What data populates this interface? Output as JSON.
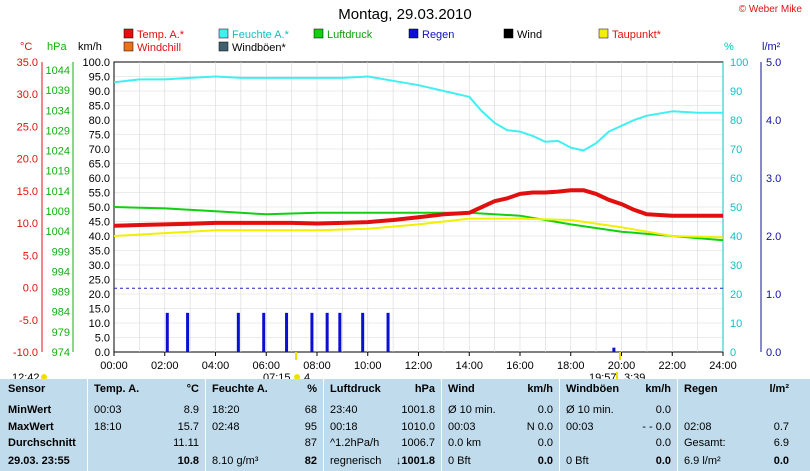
{
  "title": "Montag, 29.03.2010",
  "credit": "© Weber Mike",
  "colors": {
    "temp": "#e01010",
    "feuchte": "#40f0f0",
    "luftdruck": "#10d010",
    "regen": "#0a10d0",
    "wind": "#000000",
    "taupunkt": "#f0f000",
    "windchill": "#f07018",
    "windboeen": "#406070",
    "axis_temp": "#e01010",
    "axis_hpa": "#10b010",
    "axis_pct": "#10c0c0",
    "axis_rain": "#1010a0",
    "dotted": "#2020c0",
    "panel": "#c0dcec"
  },
  "legend": [
    {
      "label": "Temp. A.*",
      "color_key": "temp"
    },
    {
      "label": "Feuchte A.*",
      "color_key": "feuchte"
    },
    {
      "label": "Luftdruck",
      "color_key": "luftdruck"
    },
    {
      "label": "Regen",
      "color_key": "regen"
    },
    {
      "label": "Wind",
      "color_key": "wind"
    },
    {
      "label": "Taupunkt*",
      "color_key": "taupunkt"
    },
    {
      "label": "Windchill",
      "color_key": "windchill"
    },
    {
      "label": "Windböen*",
      "color_key": "windboeen"
    }
  ],
  "axis_headers": {
    "temp": "°C",
    "hpa": "hPa",
    "kmh": "km/h",
    "pct": "%",
    "rain": "l/m²"
  },
  "chart_data": {
    "type": "line",
    "x_range": [
      0,
      24
    ],
    "x_ticks": [
      "00:00",
      "02:00",
      "04:00",
      "06:00",
      "08:00",
      "10:00",
      "12:00",
      "14:00",
      "16:00",
      "18:00",
      "20:00",
      "22:00",
      "24:00"
    ],
    "kmh_range": [
      0,
      100
    ],
    "kmh_ticks": [
      "0.0",
      "5.0",
      "10.0",
      "15.0",
      "20.0",
      "25.0",
      "30.0",
      "35.0",
      "40.0",
      "45.0",
      "50.0",
      "55.0",
      "60.0",
      "65.0",
      "70.0",
      "75.0",
      "80.0",
      "85.0",
      "90.0",
      "95.0",
      "100.0"
    ],
    "temp_ticks": [
      "35.0",
      "30.0",
      "25.0",
      "20.0",
      "15.0",
      "10.0",
      "5.0",
      "0.0",
      "-5.0",
      "-10.0"
    ],
    "hpa_ticks": [
      "1044",
      "1039",
      "1034",
      "1029",
      "1024",
      "1019",
      "1014",
      "1009",
      "1004",
      "999",
      "994",
      "989",
      "984",
      "979",
      "974"
    ],
    "pct_ticks": [
      "100",
      "90",
      "80",
      "70",
      "60",
      "50",
      "40",
      "30",
      "20",
      "10",
      "0"
    ],
    "rain_ticks": [
      "5.0",
      "4.0",
      "3.0",
      "2.0",
      "1.0",
      "0.0"
    ],
    "zero_line_kmh": 22,
    "sun_events": [
      {
        "time": "12:42",
        "side": "start"
      },
      {
        "time": "07:15",
        "extra": "4"
      },
      {
        "time": "19:57",
        "extra": "3:39"
      }
    ],
    "series": [
      {
        "name": "Feuchte A.*",
        "color_key": "feuchte",
        "axis": "kmh",
        "width": 2,
        "x": [
          0,
          1,
          2,
          3,
          4,
          5,
          6,
          7,
          8,
          9,
          10,
          11,
          12,
          13,
          14,
          14.5,
          15,
          15.5,
          16,
          16.5,
          17,
          17.5,
          18,
          18.5,
          19,
          19.5,
          20,
          20.5,
          21,
          22,
          23,
          24
        ],
        "y": [
          93,
          94,
          94,
          94.5,
          95,
          94.5,
          94.5,
          94.5,
          94.5,
          94.5,
          95,
          93.5,
          92,
          90,
          88,
          83,
          79,
          76.5,
          76,
          74.5,
          72.5,
          72.8,
          70.5,
          69.5,
          72,
          76,
          78,
          80,
          81.5,
          83,
          82.5,
          82.5
        ]
      },
      {
        "name": "Luftdruck",
        "color_key": "luftdruck",
        "axis": "kmh",
        "width": 2,
        "x": [
          0,
          2,
          4,
          6,
          8,
          10,
          12,
          14,
          16,
          18,
          20,
          22,
          24
        ],
        "y": [
          50,
          49.5,
          48.5,
          47.5,
          48,
          48,
          48,
          48,
          47,
          44,
          41.5,
          40,
          38.5
        ]
      },
      {
        "name": "Taupunkt*",
        "color_key": "taupunkt",
        "axis": "kmh",
        "width": 2,
        "x": [
          0,
          2,
          4,
          6,
          8,
          10,
          12,
          14,
          16,
          18,
          20,
          22,
          24
        ],
        "y": [
          40,
          41,
          42,
          42,
          42,
          42.5,
          44,
          46,
          46,
          45.5,
          43,
          40,
          39.5
        ]
      },
      {
        "name": "Temp. A.*",
        "color_key": "temp",
        "axis": "kmh",
        "width": 4,
        "x": [
          0,
          1,
          2,
          3,
          4,
          5,
          6,
          7,
          8,
          9,
          10,
          11,
          12,
          13,
          14,
          14.5,
          15,
          15.5,
          16,
          16.5,
          17,
          17.5,
          18,
          18.5,
          19,
          19.5,
          20,
          20.5,
          21,
          22,
          23,
          24
        ],
        "y": [
          43.5,
          43.8,
          44,
          44.2,
          44.5,
          44.5,
          44.5,
          44.5,
          44.3,
          44.5,
          44.8,
          45.5,
          46.5,
          47.5,
          48,
          50,
          52,
          53,
          54.5,
          55,
          55,
          55.3,
          55.8,
          55.8,
          54.5,
          52.5,
          51,
          49,
          47.5,
          47,
          47,
          47
        ]
      },
      {
        "name": "Regen",
        "color_key": "regen",
        "axis": "kmh",
        "type": "bars",
        "x": [
          2.1,
          2.9,
          4.9,
          5.9,
          6.8,
          7.8,
          8.4,
          8.9,
          9.8,
          10.8,
          19.7
        ],
        "y": [
          13.5,
          13.5,
          13.5,
          13.5,
          13.5,
          13.5,
          13.5,
          13.5,
          13.5,
          13.5,
          1.5
        ]
      }
    ]
  },
  "stats": {
    "headers": {
      "sensor": "Sensor",
      "temp": "Temp. A.",
      "temp_unit": "°C",
      "feuchte": "Feuchte A.",
      "feuchte_unit": "%",
      "luft": "Luftdruck",
      "luft_unit": "hPa",
      "wind": "Wind",
      "wind_unit": "km/h",
      "boeen": "Windböen",
      "boeen_unit": "km/h",
      "regen": "Regen",
      "regen_unit": "l/m²"
    },
    "row_labels": [
      "MinWert",
      "MaxWert",
      "Durchschnitt"
    ],
    "date_label": "29.03. 23:55",
    "temp": [
      {
        "t": "00:03",
        "v": "8.9"
      },
      {
        "t": "18:10",
        "v": "15.7"
      },
      {
        "t": "",
        "v": "11.11"
      },
      {
        "t": "",
        "v": "10.8"
      }
    ],
    "feuchte": [
      {
        "t": "18:20",
        "v": "68"
      },
      {
        "t": "02:48",
        "v": "95"
      },
      {
        "t": "",
        "v": "87"
      },
      {
        "t": "8.10 g/m³",
        "v": "82"
      }
    ],
    "luft": [
      {
        "t": "23:40",
        "v": "1001.8"
      },
      {
        "t": "00:18",
        "v": "1010.0"
      },
      {
        "t": "^1.2hPa/h",
        "v": "1006.7"
      },
      {
        "t": "regnerisch",
        "v": "↓1001.8"
      }
    ],
    "wind": [
      {
        "t": "Ø 10 min.",
        "v": "0.0"
      },
      {
        "t": "00:03",
        "v": "N 0.0"
      },
      {
        "t": "0.0 km",
        "v": "0.0"
      },
      {
        "t": "0 Bft",
        "v": "0.0"
      }
    ],
    "boeen": [
      {
        "t": "Ø 10 min.",
        "v": "0.0"
      },
      {
        "t": "00:03",
        "v": "- - 0.0"
      },
      {
        "t": "",
        "v": "0.0"
      },
      {
        "t": "0 Bft",
        "v": "0.0"
      }
    ],
    "regen": [
      {
        "t": "",
        "v": ""
      },
      {
        "t": "02:08",
        "v": "0.7"
      },
      {
        "t": "Gesamt:",
        "v": "6.9"
      },
      {
        "t": "6.9 l/m²",
        "v": "0.0"
      }
    ]
  }
}
